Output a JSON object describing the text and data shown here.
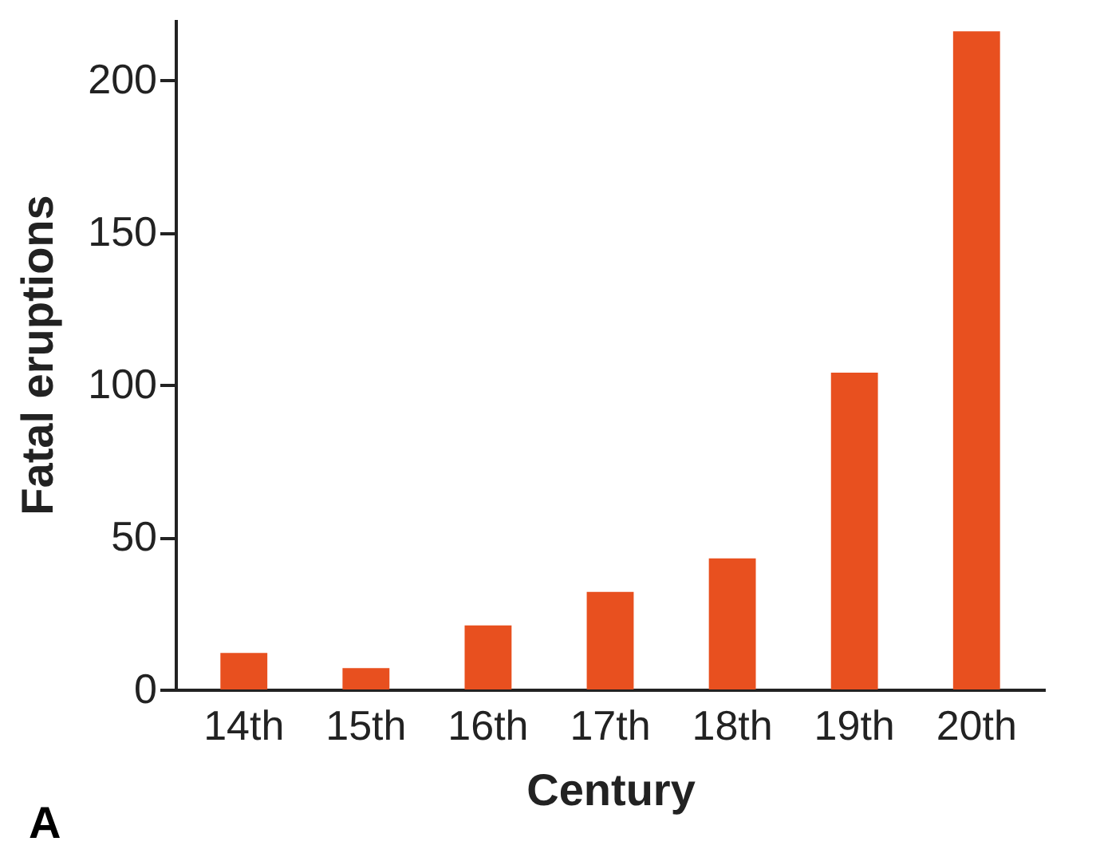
{
  "chart_data": {
    "type": "bar",
    "xlabel": "Century",
    "ylabel": "Fatal eruptions",
    "categories": [
      "14th",
      "15th",
      "16th",
      "17th",
      "18th",
      "19th",
      "20th"
    ],
    "values": [
      12,
      7,
      21,
      32,
      43,
      104,
      216
    ],
    "color": "#e8501f",
    "ylim": [
      0,
      220
    ],
    "yticks": [
      0,
      50,
      100,
      150,
      200
    ],
    "grid": false,
    "annotations": [
      "A"
    ]
  }
}
